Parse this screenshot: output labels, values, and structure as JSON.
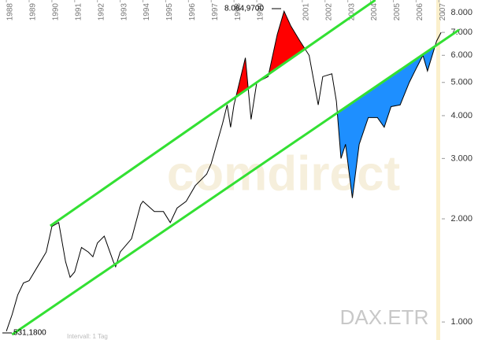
{
  "chart_data": {
    "type": "line",
    "log_y": true,
    "series": [
      {
        "name": "DAX",
        "color": "#000000",
        "x": [
          1988.0,
          1988.25,
          1988.5,
          1988.75,
          1989.0,
          1989.5,
          1989.75,
          1990.0,
          1990.3,
          1990.6,
          1990.8,
          1991.0,
          1991.3,
          1991.6,
          1991.8,
          1992.0,
          1992.3,
          1992.7,
          1992.8,
          1993.0,
          1993.5,
          1993.9,
          1994.0,
          1994.5,
          1994.9,
          1995.2,
          1995.5,
          1995.9,
          1996.3,
          1996.8,
          1997.0,
          1997.5,
          1997.7,
          1997.85,
          1998.0,
          1998.5,
          1998.75,
          1999.0,
          1999.5,
          1999.9,
          2000.2,
          2000.5,
          2000.9,
          2001.3,
          2001.7,
          2001.9,
          2002.3,
          2002.5,
          2002.7,
          2002.9,
          2003.2,
          2003.5,
          2003.9,
          2004.3,
          2004.6,
          2004.9,
          2005.3,
          2005.7,
          2005.95,
          2006.3,
          2006.5,
          2006.9,
          2007.1
        ],
        "values": [
          940,
          1050,
          1200,
          1300,
          1320,
          1500,
          1600,
          1900,
          1950,
          1500,
          1350,
          1400,
          1650,
          1600,
          1550,
          1700,
          1780,
          1500,
          1450,
          1600,
          1750,
          2200,
          2250,
          2100,
          2100,
          1950,
          2150,
          2250,
          2500,
          2700,
          2900,
          3800,
          4300,
          3700,
          4300,
          5900,
          3900,
          5000,
          5200,
          6900,
          8065,
          7300,
          6600,
          6000,
          4300,
          5200,
          5300,
          4400,
          3000,
          3300,
          2300,
          3300,
          3950,
          3950,
          3700,
          4250,
          4300,
          5000,
          5400,
          6000,
          5400,
          6600,
          7000
        ]
      }
    ],
    "trend_lines": [
      {
        "color": "#33e033",
        "x": [
          1989.93,
          2004.21
        ],
        "values": [
          1907,
          8700
        ],
        "fill": "#ff0000",
        "fill_side": "above"
      },
      {
        "color": "#33e033",
        "x": [
          1988.25,
          2007.89
        ],
        "values": [
          919,
          7120
        ],
        "fill": "#1e8fff",
        "fill_side": "below"
      }
    ],
    "xlim": [
      1987.72,
      2008.72
    ],
    "ylim": [
      886,
      8700
    ],
    "xticks": [
      1988,
      1989,
      1990,
      1991,
      1992,
      1993,
      1994,
      1995,
      1996,
      1997,
      1998,
      1999,
      2001,
      2002,
      2003,
      2004,
      2005,
      2006,
      2007
    ],
    "yticks": [
      {
        "value": 1000,
        "label": "1.000"
      },
      {
        "value": 2000,
        "label": "2.000"
      },
      {
        "value": 3000,
        "label": "3.000"
      },
      {
        "value": 4000,
        "label": "4.000"
      },
      {
        "value": 5000,
        "label": "5.000"
      },
      {
        "value": 6000,
        "label": "6.000"
      },
      {
        "value": 7000,
        "label": "7.000"
      },
      {
        "value": 8000,
        "label": "8.000"
      }
    ],
    "annotations": [
      "8.064,9700",
      "531,1800"
    ],
    "symbol": "DAX.ETR",
    "interval": "Intervall: 1 Tag",
    "watermark": "comdirect"
  }
}
